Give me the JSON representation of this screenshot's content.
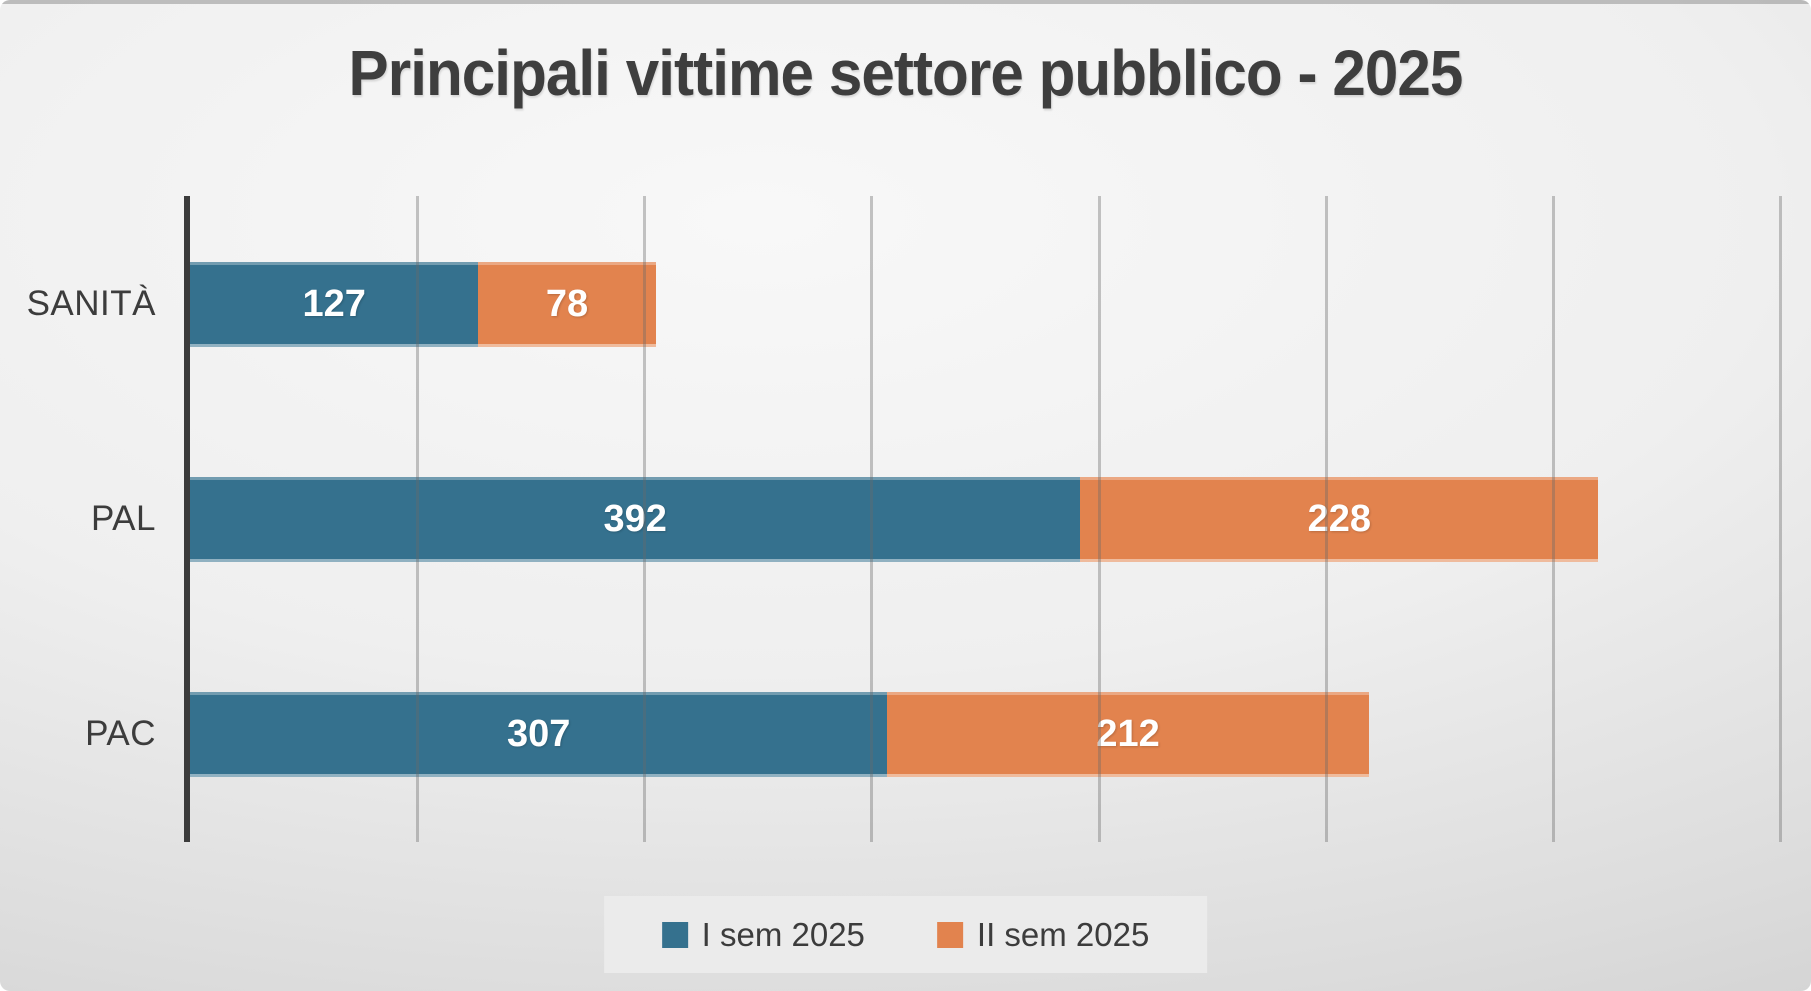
{
  "title": "Principali vittime settore pubblico - 2025",
  "chart_data": {
    "type": "bar",
    "orientation": "horizontal",
    "stacked": true,
    "title": "Principali vittime settore pubblico - 2025",
    "categories": [
      "SANITÀ",
      "PAL",
      "PAC"
    ],
    "series": [
      {
        "name": "I sem 2025",
        "color": "#35718E",
        "values": [
          127,
          392,
          307
        ]
      },
      {
        "name": "II sem 2025",
        "color": "#E2834E",
        "values": [
          78,
          228,
          212
        ]
      }
    ],
    "xlim": [
      0,
      700
    ],
    "x_step": 100,
    "grid": "vertical",
    "legend_position": "bottom",
    "value_labels": "inside-center",
    "value_label_color": "#FFFFFF",
    "axis_color": "#3B3B3B",
    "xlabel": "",
    "ylabel": ""
  }
}
